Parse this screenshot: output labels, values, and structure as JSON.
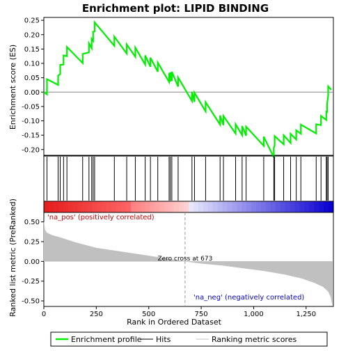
{
  "chart_data": {
    "type": "line",
    "title": "Enrichment plot: LIPID BINDING",
    "n_genes": 1380,
    "es_panel": {
      "ylabel": "Enrichment score (ES)",
      "ylim": [
        -0.22,
        0.26
      ],
      "yticks": [
        -0.2,
        -0.15,
        -0.1,
        -0.05,
        0.0,
        0.05,
        0.1,
        0.15,
        0.2,
        0.25
      ],
      "ytick_labels": [
        "-0.20",
        "-0.15",
        "-0.10",
        "-0.05",
        "0.00",
        "0.05",
        "0.10",
        "0.15",
        "0.20",
        "0.25"
      ],
      "series_color": "#00ee00",
      "hits": [
        15,
        68,
        78,
        94,
        110,
        185,
        215,
        228,
        235,
        242,
        336,
        395,
        436,
        483,
        508,
        543,
        597,
        603,
        610,
        640,
        706,
        718,
        771,
        840,
        856,
        914,
        945,
        964,
        1048,
        1096,
        1100,
        1143,
        1176,
        1203,
        1225,
        1298,
        1321,
        1346,
        1350,
        1355
      ],
      "es_peaks": [
        0.045,
        0.057,
        0.095,
        0.128,
        0.157,
        0.133,
        0.17,
        0.185,
        0.21,
        0.243,
        0.193,
        0.166,
        0.155,
        0.128,
        0.12,
        0.103,
        0.067,
        0.069,
        0.071,
        0.051,
        0.001,
        -0.002,
        -0.035,
        -0.081,
        -0.083,
        -0.112,
        -0.118,
        -0.12,
        -0.155,
        -0.195,
        -0.153,
        -0.15,
        -0.145,
        -0.133,
        -0.113,
        -0.112,
        -0.083,
        -0.065,
        -0.04,
        0.02
      ],
      "es_end": 0.008
    },
    "metric_panel": {
      "ylabel": "Ranked list metric (PreRanked)",
      "ylim": [
        -0.57,
        0.62
      ],
      "yticks": [
        -0.5,
        -0.25,
        0.0,
        0.25,
        0.5
      ],
      "ytick_labels": [
        "-0.50",
        "-0.25",
        "0.00",
        "0.25",
        "0.50"
      ],
      "metric_samples": [
        [
          0,
          0.5
        ],
        [
          5,
          0.4
        ],
        [
          15,
          0.36
        ],
        [
          40,
          0.33
        ],
        [
          80,
          0.3
        ],
        [
          150,
          0.24
        ],
        [
          250,
          0.17
        ],
        [
          350,
          0.13
        ],
        [
          450,
          0.09
        ],
        [
          550,
          0.05
        ],
        [
          620,
          0.02
        ],
        [
          673,
          0.0
        ],
        [
          750,
          -0.025
        ],
        [
          850,
          -0.05
        ],
        [
          950,
          -0.085
        ],
        [
          1050,
          -0.12
        ],
        [
          1150,
          -0.165
        ],
        [
          1230,
          -0.215
        ],
        [
          1290,
          -0.27
        ],
        [
          1330,
          -0.32
        ],
        [
          1355,
          -0.38
        ],
        [
          1368,
          -0.45
        ],
        [
          1375,
          -0.55
        ]
      ],
      "fill_color": "#c0c0c0",
      "zero_cross_rank": 673,
      "zero_cross_label": "Zero cross at 673",
      "pos_label": "'na_pos' (positively correlated)",
      "neg_label": "'na_neg' (negatively correlated)"
    },
    "xlabel": "Rank in Ordered Dataset",
    "xticks": [
      0,
      250,
      500,
      750,
      1000,
      1250
    ],
    "xtick_labels": [
      "0",
      "250",
      "500",
      "750",
      "1,000",
      "1,250"
    ],
    "legend": {
      "placement": "bottom",
      "entries": [
        {
          "label": "Enrichment profile",
          "color": "#00ee00",
          "style": "line-thick"
        },
        {
          "label": "Hits",
          "color": "#000000",
          "style": "line"
        },
        {
          "label": "Ranking metric scores",
          "color": "#c0c0c0",
          "style": "line"
        }
      ]
    }
  }
}
